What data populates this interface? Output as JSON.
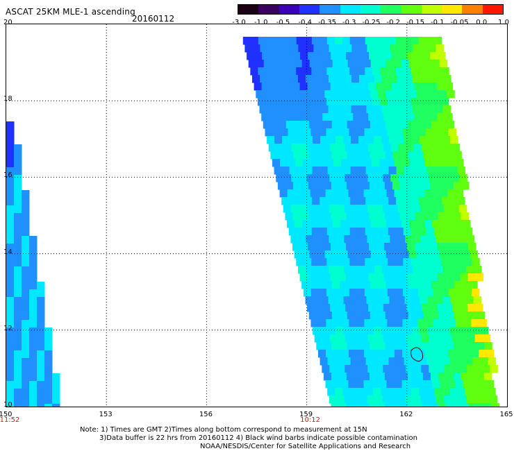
{
  "header": {
    "title": "ASCAT 25KM MLE-1 ascending",
    "date": "20160112"
  },
  "colorbar": {
    "labels": [
      "-3.0",
      "-1.0",
      "-0.5",
      "-0.4",
      "-0.35",
      "-0.3",
      "-0.25",
      "-0.2",
      "-0.15",
      "-0.1",
      "-0.05",
      "0.0",
      "1.0"
    ],
    "colors": [
      "#1a0012",
      "#3a0060",
      "#3a00b8",
      "#1f30ff",
      "#2090ff",
      "#00e8ff",
      "#00ffd0",
      "#20ff60",
      "#60ff10",
      "#c0ff00",
      "#ffe800",
      "#ff8000",
      "#ff1800"
    ]
  },
  "map": {
    "lon_range": [
      150,
      165
    ],
    "lat_range": [
      10,
      20
    ],
    "x_ticks": [
      "150",
      "153",
      "156",
      "159",
      "162",
      "165"
    ],
    "y_ticks": [
      "10",
      "12",
      "14",
      "16",
      "18",
      "20"
    ],
    "time_labels": [
      {
        "lon": 150,
        "text": "11:52"
      },
      {
        "lon": 159,
        "text": "10:12"
      }
    ],
    "grid": "dotted"
  },
  "footer": {
    "note_line1": "Note: 1) Times are GMT 2)Times along bottom correspond to measurement at 15N",
    "note_line2": "3)Data buffer is 22 hrs from 20160112 4) Black wind barbs indicate possible contamination",
    "note_line3": "NOAA/NESDIS/Center for Satellite Applications and Research"
  }
}
